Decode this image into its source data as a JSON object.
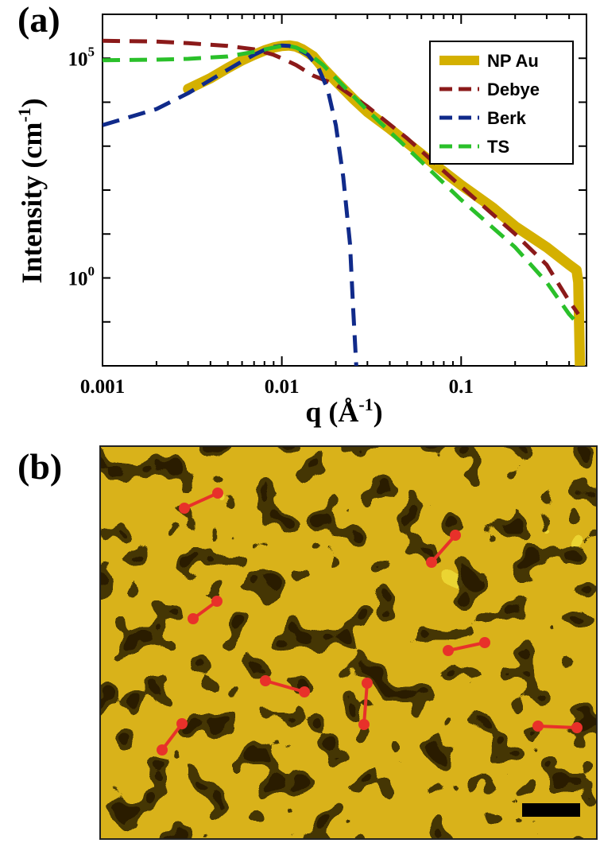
{
  "panel_a_label": "(a)",
  "panel_b_label": "(b)",
  "chart_data": {
    "type": "line",
    "title": "",
    "xlabel": "q (Å",
    "xlabel_sup": "-1",
    "xlabel_end": ")",
    "ylabel": "Intensity (cm",
    "ylabel_sup": "-1",
    "ylabel_end": ")",
    "x_scale": "log",
    "y_scale": "log",
    "xlim": [
      0.001,
      0.5
    ],
    "ylim": [
      0.01,
      1000000
    ],
    "x_ticks": [
      {
        "value": 0.001,
        "label": "0.001"
      },
      {
        "value": 0.01,
        "label": "0.01"
      },
      {
        "value": 0.1,
        "label": "0.1"
      }
    ],
    "y_ticks": [
      {
        "value": 1,
        "base": "10",
        "exp": "0"
      },
      {
        "value": 100000,
        "base": "10",
        "exp": "5"
      }
    ],
    "legend_position": "top-right",
    "series": [
      {
        "name": "NP Au",
        "color": "#d4b000",
        "style": "solid-thick",
        "points": [
          [
            0.003,
            20000
          ],
          [
            0.004,
            35000
          ],
          [
            0.005,
            60000
          ],
          [
            0.006,
            90000
          ],
          [
            0.007,
            120000
          ],
          [
            0.008,
            150000
          ],
          [
            0.009,
            175000
          ],
          [
            0.01,
            190000
          ],
          [
            0.011,
            195000
          ],
          [
            0.012,
            185000
          ],
          [
            0.013,
            160000
          ],
          [
            0.015,
            110000
          ],
          [
            0.017,
            60000
          ],
          [
            0.02,
            30000
          ],
          [
            0.025,
            12000
          ],
          [
            0.03,
            6000
          ],
          [
            0.04,
            2500
          ],
          [
            0.05,
            1200
          ],
          [
            0.07,
            400
          ],
          [
            0.1,
            130
          ],
          [
            0.15,
            40
          ],
          [
            0.2,
            15
          ],
          [
            0.3,
            5
          ],
          [
            0.4,
            2
          ],
          [
            0.44,
            1.5
          ],
          [
            0.45,
            0.8
          ],
          [
            0.46,
            0.01
          ]
        ]
      },
      {
        "name": "Debye",
        "color": "#8b1a1a",
        "style": "dashed",
        "points": [
          [
            0.001,
            250000
          ],
          [
            0.002,
            240000
          ],
          [
            0.003,
            220000
          ],
          [
            0.005,
            190000
          ],
          [
            0.007,
            160000
          ],
          [
            0.009,
            120000
          ],
          [
            0.01,
            100000
          ],
          [
            0.012,
            70000
          ],
          [
            0.015,
            40000
          ],
          [
            0.02,
            25000
          ],
          [
            0.03,
            8000
          ],
          [
            0.05,
            1500
          ],
          [
            0.1,
            120
          ],
          [
            0.2,
            10
          ],
          [
            0.3,
            2
          ],
          [
            0.4,
            0.3
          ],
          [
            0.45,
            0.15
          ]
        ]
      },
      {
        "name": "Berk",
        "color": "#102a8a",
        "style": "dashed",
        "points": [
          [
            0.001,
            3000
          ],
          [
            0.002,
            7000
          ],
          [
            0.003,
            16000
          ],
          [
            0.004,
            32000
          ],
          [
            0.005,
            55000
          ],
          [
            0.006,
            85000
          ],
          [
            0.007,
            120000
          ],
          [
            0.008,
            155000
          ],
          [
            0.009,
            180000
          ],
          [
            0.01,
            195000
          ],
          [
            0.011,
            190000
          ],
          [
            0.012,
            170000
          ],
          [
            0.014,
            120000
          ],
          [
            0.016,
            60000
          ],
          [
            0.018,
            20000
          ],
          [
            0.02,
            3000
          ],
          [
            0.022,
            200
          ],
          [
            0.024,
            6
          ],
          [
            0.025,
            0.2
          ],
          [
            0.026,
            0.01
          ]
        ]
      },
      {
        "name": "TS",
        "color": "#2ac02a",
        "style": "dashed",
        "points": [
          [
            0.001,
            90000
          ],
          [
            0.002,
            93000
          ],
          [
            0.003,
            97000
          ],
          [
            0.005,
            110000
          ],
          [
            0.007,
            140000
          ],
          [
            0.009,
            175000
          ],
          [
            0.01,
            190000
          ],
          [
            0.011,
            190000
          ],
          [
            0.012,
            175000
          ],
          [
            0.014,
            130000
          ],
          [
            0.017,
            70000
          ],
          [
            0.02,
            35000
          ],
          [
            0.03,
            6500
          ],
          [
            0.05,
            900
          ],
          [
            0.1,
            60
          ],
          [
            0.2,
            5
          ],
          [
            0.3,
            0.8
          ],
          [
            0.4,
            0.15
          ],
          [
            0.46,
            0.08
          ]
        ]
      }
    ]
  },
  "image_b": {
    "scale_bar_color": "#000000",
    "marker_color": "#e8312a",
    "texture": "nanoporous-gold-micrograph"
  }
}
